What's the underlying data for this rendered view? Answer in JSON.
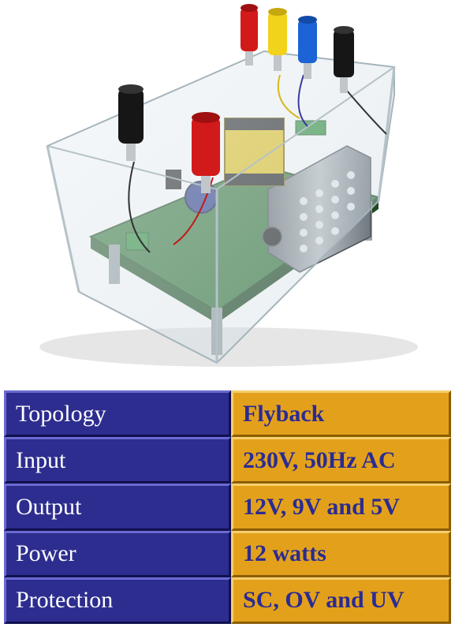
{
  "image": {
    "subject": "flyback power supply in clear acrylic enclosure with banana terminals",
    "colors": {
      "terminal_red": "#d31a1a",
      "terminal_yellow": "#f2d21a",
      "terminal_blue": "#1b63d6",
      "terminal_black": "#161616",
      "pcb_green": "#3a7a3e",
      "heatsink": "#8f969c",
      "transformer": "#e4c421"
    }
  },
  "specs": [
    {
      "label": "Topology",
      "value": "Flyback"
    },
    {
      "label": "Input",
      "value": "230V, 50Hz AC"
    },
    {
      "label": "Output",
      "value": "12V, 9V and 5V"
    },
    {
      "label": "Power",
      "value": "12 watts"
    },
    {
      "label": "Protection",
      "value": "SC, OV and UV"
    }
  ],
  "table_colors": {
    "label_bg": "#2d2d8f",
    "label_text": "#ffffff",
    "value_bg": "#e3a11b",
    "value_text": "#2b2b92"
  }
}
